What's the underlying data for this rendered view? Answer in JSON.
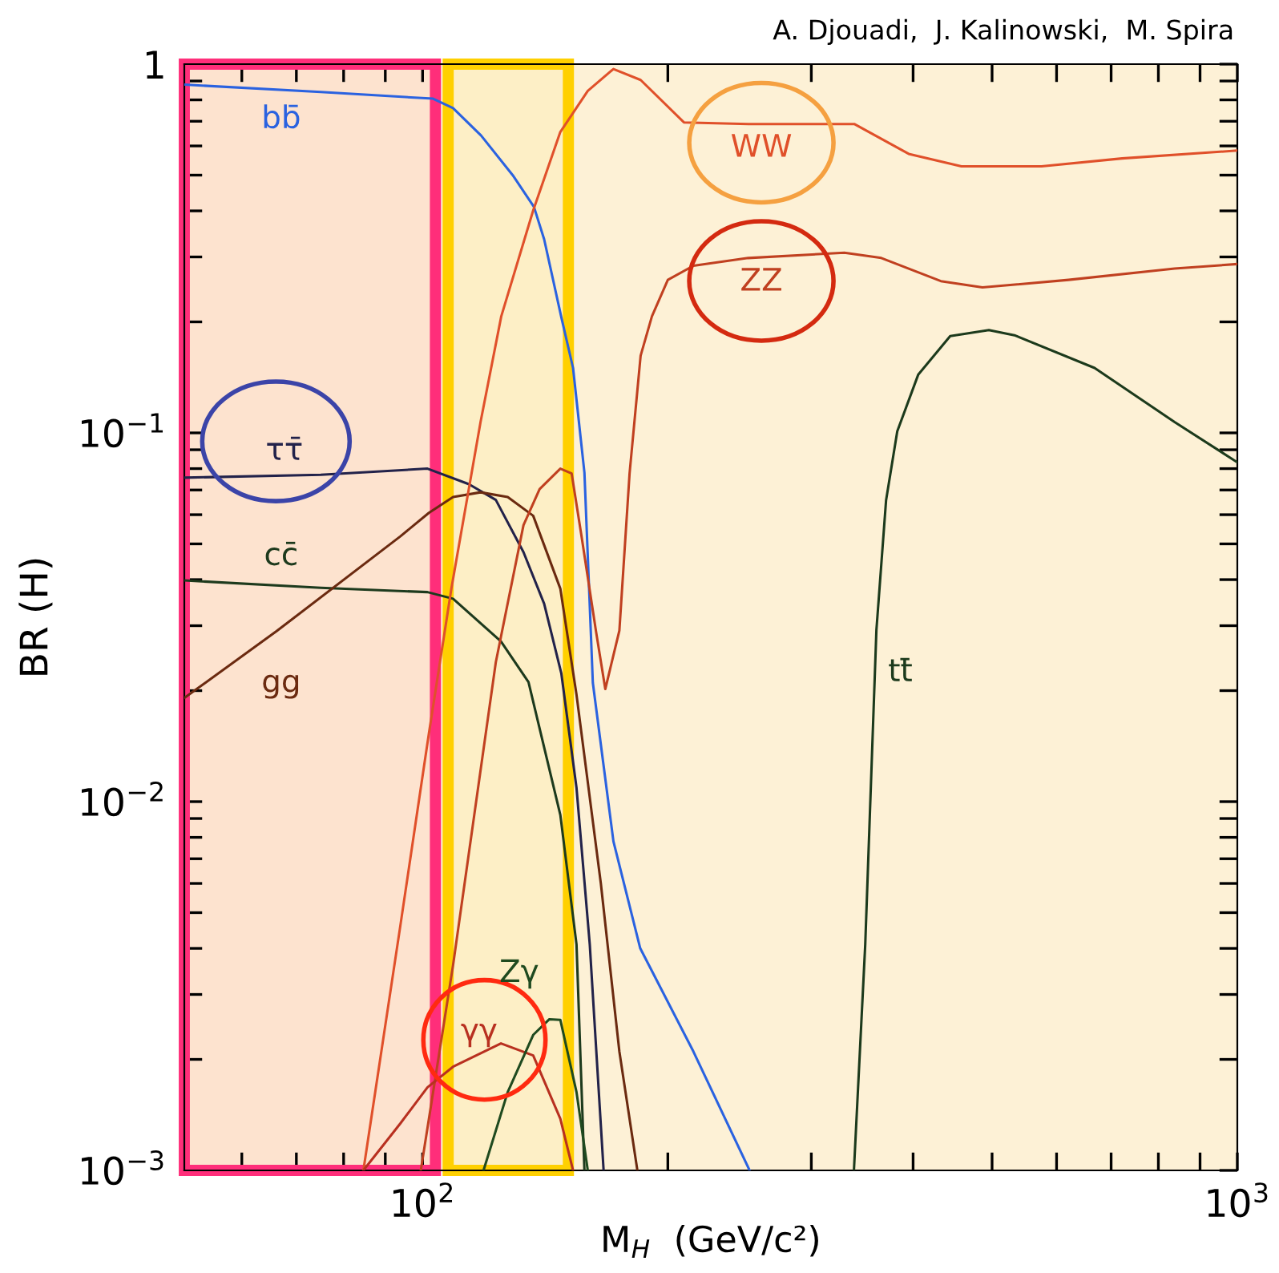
{
  "chart_data": {
    "type": "line",
    "xlabel": "M$_{H}$  (GeV/c²)",
    "ylabel": "BR (H)",
    "log": "xy",
    "grid": false,
    "legend": false,
    "line_style": "solid",
    "marker": "none",
    "xlim": [
      51,
      1000
    ],
    "ylim": [
      0.001,
      1
    ],
    "xticks": [
      {
        "value": 60,
        "label": null
      },
      {
        "value": 70,
        "label": null
      },
      {
        "value": 80,
        "label": null
      },
      {
        "value": 90,
        "label": null
      },
      {
        "value": 100,
        "label": "10$^{2}$"
      },
      {
        "value": 200,
        "label": null
      },
      {
        "value": 300,
        "label": null
      },
      {
        "value": 400,
        "label": null
      },
      {
        "value": 500,
        "label": null
      },
      {
        "value": 600,
        "label": null
      },
      {
        "value": 700,
        "label": null
      },
      {
        "value": 800,
        "label": null
      },
      {
        "value": 900,
        "label": null
      },
      {
        "value": 1000,
        "label": "10$^{3}$"
      }
    ],
    "yticks": [
      {
        "value": 0.001,
        "label": "10$^{−3}$"
      },
      {
        "value": 0.002,
        "label": null
      },
      {
        "value": 0.003,
        "label": null
      },
      {
        "value": 0.004,
        "label": null
      },
      {
        "value": 0.005,
        "label": null
      },
      {
        "value": 0.006,
        "label": null
      },
      {
        "value": 0.007,
        "label": null
      },
      {
        "value": 0.008,
        "label": null
      },
      {
        "value": 0.009,
        "label": null
      },
      {
        "value": 0.01,
        "label": "10$^{−2}$"
      },
      {
        "value": 0.02,
        "label": null
      },
      {
        "value": 0.03,
        "label": null
      },
      {
        "value": 0.04,
        "label": null
      },
      {
        "value": 0.05,
        "label": null
      },
      {
        "value": 0.06,
        "label": null
      },
      {
        "value": 0.07,
        "label": null
      },
      {
        "value": 0.08,
        "label": null
      },
      {
        "value": 0.09,
        "label": null
      },
      {
        "value": 0.1,
        "label": "10$^{−1}$"
      },
      {
        "value": 0.2,
        "label": null
      },
      {
        "value": 0.3,
        "label": null
      },
      {
        "value": 0.4,
        "label": null
      },
      {
        "value": 0.5,
        "label": null
      },
      {
        "value": 0.6,
        "label": null
      },
      {
        "value": 0.7,
        "label": null
      },
      {
        "value": 0.8,
        "label": null
      },
      {
        "value": 0.9,
        "label": null
      },
      1
    ],
    "series": [
      {
        "name": "bb̄",
        "color": "#2a62e0",
        "x": [
          51,
          75,
          103,
          109,
          118,
          129,
          137,
          141,
          148,
          153,
          158,
          160.4,
          161.8,
          171.5,
          185,
          215,
          252
        ],
        "values": [
          0.88,
          0.84,
          0.806,
          0.76,
          0.64,
          0.5,
          0.41,
          0.335,
          0.206,
          0.15,
          0.078,
          0.034,
          0.021,
          0.0078,
          0.004,
          0.0021,
          0.001
        ]
      },
      {
        "name": "ττ̄",
        "color": "#22224a",
        "x": [
          51,
          75,
          101.4,
          114,
          123,
          133,
          141,
          148,
          154.5,
          160.4,
          166.8
        ],
        "values": [
          0.0756,
          0.077,
          0.08,
          0.0726,
          0.0658,
          0.0475,
          0.0344,
          0.0223,
          0.0109,
          0.0041,
          0.001
        ]
      },
      {
        "name": "cc̄",
        "color": "#1d3a1d",
        "x": [
          51,
          75,
          101.4,
          109,
          124.8,
          134.9,
          147.6,
          154.5,
          158
        ],
        "values": [
          0.0398,
          0.038,
          0.037,
          0.0355,
          0.0272,
          0.0211,
          0.0092,
          0.0041,
          0.001
        ]
      },
      {
        "name": "gg",
        "color": "#6b2a10",
        "x": [
          51,
          66.2,
          93.9,
          101.8,
          109,
          117.8,
          127.2,
          136.7,
          147.6,
          154.5,
          165.5,
          174.4,
          183.5
        ],
        "values": [
          0.0191,
          0.029,
          0.0524,
          0.0607,
          0.067,
          0.069,
          0.067,
          0.0596,
          0.0378,
          0.0195,
          0.006,
          0.0021,
          0.001
        ]
      },
      {
        "name": "WW",
        "color": "#e0502a",
        "x": [
          84.6,
          93.9,
          101.8,
          108.5,
          117.8,
          124.9,
          136.7,
          147.6,
          159.5,
          171.5,
          185.2,
          209.3,
          251.2,
          338.7,
          395,
          458.5,
          575,
          722,
          1000
        ],
        "values": [
          0.001,
          0.0046,
          0.0153,
          0.0379,
          0.107,
          0.207,
          0.401,
          0.655,
          0.846,
          0.97,
          0.906,
          0.695,
          0.688,
          0.688,
          0.571,
          0.528,
          0.528,
          0.555,
          0.583
        ]
      },
      {
        "name": "ZZ",
        "color": "#c04020",
        "x": [
          99.5,
          109,
          123,
          133,
          139.2,
          147.6,
          152.4,
          156.7,
          163.2,
          167.6,
          174.4,
          179.5,
          185.2,
          191.2,
          200,
          215,
          251,
          329.4,
          365.6,
          432.6,
          486.6,
          620.6,
          837.6,
          1000
        ],
        "values": [
          0.001,
          0.0036,
          0.0239,
          0.0562,
          0.0704,
          0.08,
          0.0776,
          0.0525,
          0.0291,
          0.0202,
          0.0291,
          0.0776,
          0.162,
          0.207,
          0.26,
          0.284,
          0.298,
          0.308,
          0.298,
          0.258,
          0.248,
          0.26,
          0.279,
          0.287
        ]
      },
      {
        "name": "tt̄",
        "color": "#1c3a1c",
        "x": [
          338.4,
          349.4,
          360.6,
          370.6,
          382.5,
          405.9,
          444.2,
          495.5,
          532.6,
          668,
          837.6,
          1000
        ],
        "values": [
          0.001,
          0.0041,
          0.0292,
          0.0657,
          0.101,
          0.144,
          0.183,
          0.19,
          0.184,
          0.15,
          0.107,
          0.0832
        ]
      },
      {
        "name": "γγ",
        "color": "#b83020",
        "x": [
          84.6,
          93.9,
          101.4,
          109,
          124.8,
          136.7,
          147.6,
          153
        ],
        "values": [
          0.001,
          0.00134,
          0.00168,
          0.00191,
          0.00221,
          0.00205,
          0.00138,
          0.001
        ]
      },
      {
        "name": "Zγ",
        "color": "#1f4a1f",
        "x": [
          118.8,
          127.2,
          136.7,
          143.1,
          147.6,
          154.5,
          159.5
        ],
        "values": [
          0.001,
          0.00163,
          0.00233,
          0.00257,
          0.00256,
          0.00163,
          0.001
        ]
      }
    ],
    "bands": [
      {
        "axis": "x",
        "from": 51,
        "to": 103.7,
        "color": "#ff2e7a"
      },
      {
        "axis": "x",
        "from": 107.5,
        "to": 151,
        "color": "#ffd000"
      }
    ],
    "annotations": [
      "A. Djouadi,  J. Kalinowski,  M. Spira"
    ]
  }
}
